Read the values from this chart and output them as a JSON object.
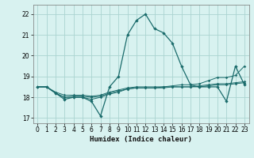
{
  "title": "",
  "xlabel": "Humidex (Indice chaleur)",
  "xlim": [
    -0.5,
    23.5
  ],
  "ylim": [
    16.75,
    22.45
  ],
  "yticks": [
    17,
    18,
    19,
    20,
    21,
    22
  ],
  "xticks": [
    0,
    1,
    2,
    3,
    4,
    5,
    6,
    7,
    8,
    9,
    10,
    11,
    12,
    13,
    14,
    15,
    16,
    17,
    18,
    19,
    20,
    21,
    22,
    23
  ],
  "bg_color": "#d8f2f0",
  "grid_color": "#aad4d0",
  "line_color": "#1a6b6b",
  "line1_x": [
    0,
    1,
    2,
    3,
    4,
    5,
    6,
    7,
    8,
    9,
    10,
    11,
    12,
    13,
    14,
    15,
    16,
    17,
    18,
    19,
    20,
    21,
    22,
    23
  ],
  "line1_y": [
    18.5,
    18.5,
    18.2,
    17.9,
    18.0,
    18.0,
    17.8,
    17.1,
    18.5,
    19.0,
    21.0,
    21.7,
    22.0,
    21.3,
    21.1,
    20.6,
    19.5,
    18.6,
    18.5,
    18.5,
    18.5,
    17.8,
    19.5,
    18.6
  ],
  "line2_x": [
    0,
    1,
    2,
    3,
    4,
    5,
    6,
    7,
    8,
    9,
    10,
    11,
    12,
    13,
    14,
    15,
    16,
    17,
    18,
    19,
    20,
    21,
    22,
    23
  ],
  "line2_y": [
    18.5,
    18.5,
    18.2,
    18.0,
    18.05,
    18.05,
    18.0,
    18.05,
    18.2,
    18.3,
    18.4,
    18.45,
    18.45,
    18.45,
    18.5,
    18.5,
    18.5,
    18.5,
    18.55,
    18.6,
    18.65,
    18.65,
    18.7,
    18.75
  ],
  "line3_x": [
    0,
    1,
    2,
    3,
    4,
    5,
    6,
    7,
    8,
    9,
    10,
    11,
    12,
    13,
    14,
    15,
    16,
    17,
    18,
    19,
    20,
    21,
    22,
    23
  ],
  "line3_y": [
    18.5,
    18.5,
    18.25,
    18.1,
    18.1,
    18.1,
    18.05,
    18.1,
    18.25,
    18.35,
    18.45,
    18.5,
    18.5,
    18.5,
    18.5,
    18.55,
    18.6,
    18.6,
    18.65,
    18.8,
    18.95,
    18.95,
    19.05,
    19.5
  ],
  "line4_x": [
    0,
    1,
    2,
    3,
    4,
    5,
    6,
    7,
    8,
    9,
    10,
    11,
    12,
    13,
    14,
    15,
    16,
    17,
    18,
    19,
    20,
    21,
    22,
    23
  ],
  "line4_y": [
    18.5,
    18.5,
    18.2,
    18.0,
    18.0,
    18.0,
    17.9,
    18.0,
    18.15,
    18.25,
    18.4,
    18.45,
    18.45,
    18.45,
    18.45,
    18.5,
    18.5,
    18.5,
    18.5,
    18.55,
    18.6,
    18.6,
    18.65,
    18.7
  ]
}
